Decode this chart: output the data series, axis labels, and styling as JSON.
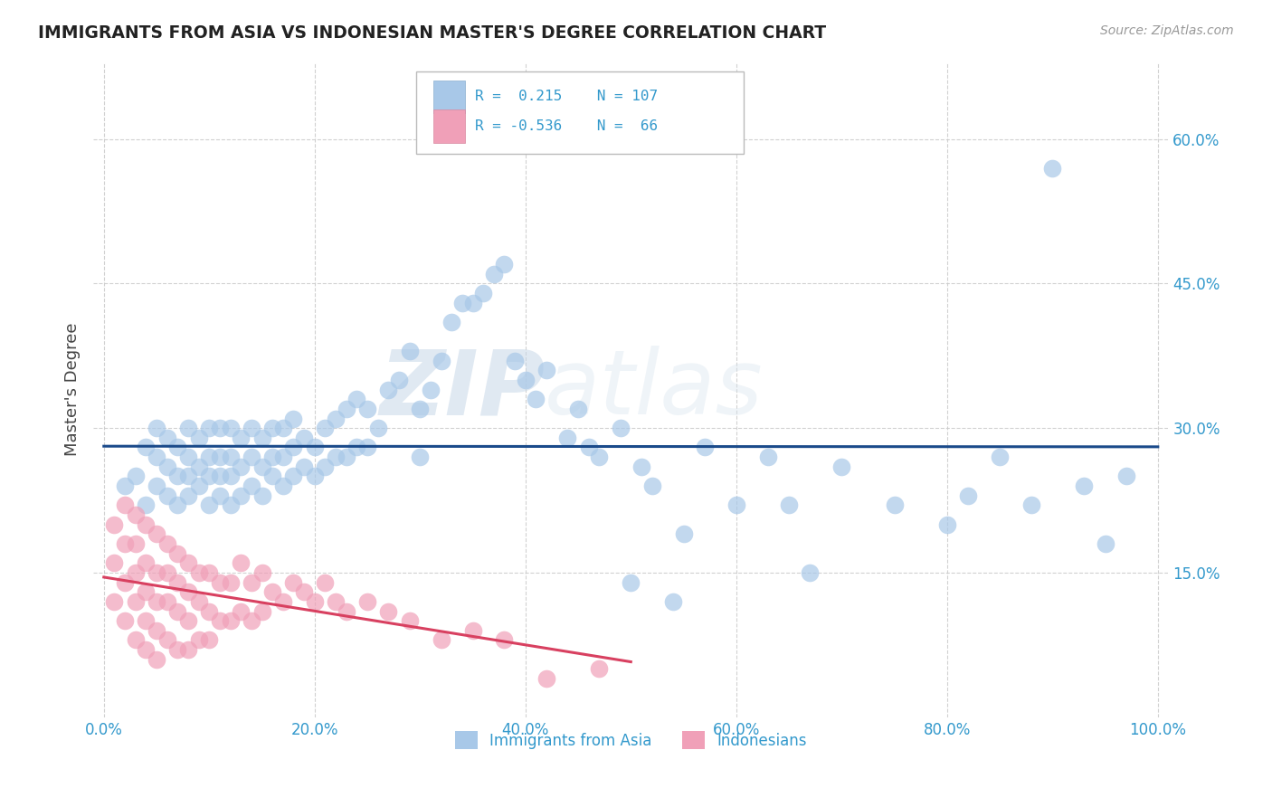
{
  "title": "IMMIGRANTS FROM ASIA VS INDONESIAN MASTER'S DEGREE CORRELATION CHART",
  "source": "Source: ZipAtlas.com",
  "xlabel_label": "Immigrants from Asia",
  "ylabel_label": "Master's Degree",
  "watermark_zip": "ZIP",
  "watermark_atlas": "atlas",
  "legend_r1": "R =  0.215",
  "legend_n1": "N = 107",
  "legend_r2": "R = -0.536",
  "legend_n2": "N =  66",
  "xlim": [
    -0.01,
    1.01
  ],
  "ylim": [
    0.0,
    0.68
  ],
  "xticks": [
    0.0,
    0.2,
    0.4,
    0.6,
    0.8,
    1.0
  ],
  "xtick_labels": [
    "0.0%",
    "20.0%",
    "40.0%",
    "60.0%",
    "80.0%",
    "100.0%"
  ],
  "ytick_positions": [
    0.15,
    0.3,
    0.45,
    0.6
  ],
  "ytick_labels": [
    "15.0%",
    "30.0%",
    "45.0%",
    "60.0%"
  ],
  "color_blue": "#a8c8e8",
  "color_pink": "#f0a0b8",
  "line_blue": "#1a4a8a",
  "line_pink": "#d84060",
  "title_color": "#222222",
  "axis_label_color": "#444444",
  "tick_label_color": "#3399cc",
  "grid_color": "#cccccc",
  "background_color": "#ffffff",
  "blue_scatter_x": [
    0.02,
    0.03,
    0.04,
    0.04,
    0.05,
    0.05,
    0.05,
    0.06,
    0.06,
    0.06,
    0.07,
    0.07,
    0.07,
    0.08,
    0.08,
    0.08,
    0.08,
    0.09,
    0.09,
    0.09,
    0.1,
    0.1,
    0.1,
    0.1,
    0.11,
    0.11,
    0.11,
    0.11,
    0.12,
    0.12,
    0.12,
    0.12,
    0.13,
    0.13,
    0.13,
    0.14,
    0.14,
    0.14,
    0.15,
    0.15,
    0.15,
    0.16,
    0.16,
    0.16,
    0.17,
    0.17,
    0.17,
    0.18,
    0.18,
    0.18,
    0.19,
    0.19,
    0.2,
    0.2,
    0.21,
    0.21,
    0.22,
    0.22,
    0.23,
    0.23,
    0.24,
    0.24,
    0.25,
    0.25,
    0.26,
    0.27,
    0.28,
    0.29,
    0.3,
    0.3,
    0.31,
    0.32,
    0.33,
    0.34,
    0.35,
    0.36,
    0.37,
    0.38,
    0.39,
    0.4,
    0.41,
    0.42,
    0.44,
    0.45,
    0.46,
    0.47,
    0.49,
    0.5,
    0.51,
    0.52,
    0.54,
    0.55,
    0.57,
    0.6,
    0.63,
    0.65,
    0.67,
    0.7,
    0.75,
    0.8,
    0.82,
    0.85,
    0.88,
    0.9,
    0.93,
    0.95,
    0.97
  ],
  "blue_scatter_y": [
    0.24,
    0.25,
    0.22,
    0.28,
    0.24,
    0.27,
    0.3,
    0.23,
    0.26,
    0.29,
    0.22,
    0.25,
    0.28,
    0.23,
    0.25,
    0.27,
    0.3,
    0.24,
    0.26,
    0.29,
    0.22,
    0.25,
    0.27,
    0.3,
    0.23,
    0.25,
    0.27,
    0.3,
    0.22,
    0.25,
    0.27,
    0.3,
    0.23,
    0.26,
    0.29,
    0.24,
    0.27,
    0.3,
    0.23,
    0.26,
    0.29,
    0.25,
    0.27,
    0.3,
    0.24,
    0.27,
    0.3,
    0.25,
    0.28,
    0.31,
    0.26,
    0.29,
    0.25,
    0.28,
    0.26,
    0.3,
    0.27,
    0.31,
    0.27,
    0.32,
    0.28,
    0.33,
    0.28,
    0.32,
    0.3,
    0.34,
    0.35,
    0.38,
    0.27,
    0.32,
    0.34,
    0.37,
    0.41,
    0.43,
    0.43,
    0.44,
    0.46,
    0.47,
    0.37,
    0.35,
    0.33,
    0.36,
    0.29,
    0.32,
    0.28,
    0.27,
    0.3,
    0.14,
    0.26,
    0.24,
    0.12,
    0.19,
    0.28,
    0.22,
    0.27,
    0.22,
    0.15,
    0.26,
    0.22,
    0.2,
    0.23,
    0.27,
    0.22,
    0.57,
    0.24,
    0.18,
    0.25
  ],
  "pink_scatter_x": [
    0.01,
    0.01,
    0.01,
    0.02,
    0.02,
    0.02,
    0.02,
    0.03,
    0.03,
    0.03,
    0.03,
    0.03,
    0.04,
    0.04,
    0.04,
    0.04,
    0.04,
    0.05,
    0.05,
    0.05,
    0.05,
    0.05,
    0.06,
    0.06,
    0.06,
    0.06,
    0.07,
    0.07,
    0.07,
    0.07,
    0.08,
    0.08,
    0.08,
    0.08,
    0.09,
    0.09,
    0.09,
    0.1,
    0.1,
    0.1,
    0.11,
    0.11,
    0.12,
    0.12,
    0.13,
    0.13,
    0.14,
    0.14,
    0.15,
    0.15,
    0.16,
    0.17,
    0.18,
    0.19,
    0.2,
    0.21,
    0.22,
    0.23,
    0.25,
    0.27,
    0.29,
    0.32,
    0.35,
    0.38,
    0.42,
    0.47
  ],
  "pink_scatter_y": [
    0.2,
    0.16,
    0.12,
    0.22,
    0.18,
    0.14,
    0.1,
    0.21,
    0.18,
    0.15,
    0.12,
    0.08,
    0.2,
    0.16,
    0.13,
    0.1,
    0.07,
    0.19,
    0.15,
    0.12,
    0.09,
    0.06,
    0.18,
    0.15,
    0.12,
    0.08,
    0.17,
    0.14,
    0.11,
    0.07,
    0.16,
    0.13,
    0.1,
    0.07,
    0.15,
    0.12,
    0.08,
    0.15,
    0.11,
    0.08,
    0.14,
    0.1,
    0.14,
    0.1,
    0.16,
    0.11,
    0.14,
    0.1,
    0.15,
    0.11,
    0.13,
    0.12,
    0.14,
    0.13,
    0.12,
    0.14,
    0.12,
    0.11,
    0.12,
    0.11,
    0.1,
    0.08,
    0.09,
    0.08,
    0.04,
    0.05
  ]
}
